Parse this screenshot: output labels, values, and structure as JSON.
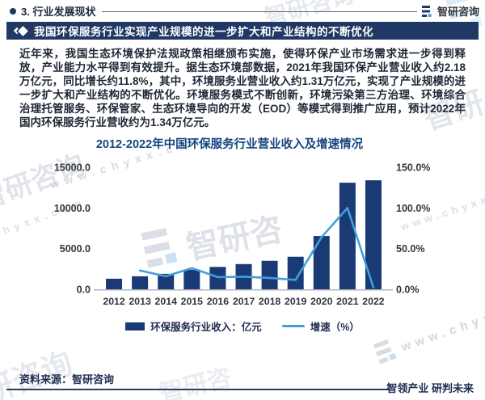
{
  "header": {
    "section_title": "3. 行业发展现状",
    "brand": "智研咨询"
  },
  "banner": {
    "title": "我国环保服务行业实现产业规模的进一步扩大和产业结构的不断优化"
  },
  "intro": {
    "text": "近年来，我国生态环境保护法规政策相继颁布实施，使得环保产业市场需求进一步得到释放，产业能力水平得到有效提升。据生态环境部数据，2021年我国环保产业营业收入约2.18 万亿元，同比增长约11.8%，其中，环境服务业营业收入约1.31万亿元，实现了产业规模的进一步扩大和产业结构的不断优化。环境服务模式不断创新，环境污染第三方治理、环境综合治理托管服务、环保管家、生态环境导向的开发（EOD）等模式得到推广应用，预计2022年国内环保服务行业营收约为1.34万亿元。"
  },
  "chart_data": {
    "type": "bar",
    "title": "2012-2022年中国环保服务行业营业收入及增速情况",
    "categories": [
      "2012",
      "2013",
      "2014",
      "2015",
      "2016",
      "2017",
      "2018",
      "2019",
      "2020",
      "2021",
      "2022"
    ],
    "series": [
      {
        "name": "环保服务行业收入：亿元",
        "type": "bar",
        "axis": "left",
        "color": "#1a3a76",
        "values": [
          1300,
          1600,
          1900,
          2400,
          2750,
          3100,
          3500,
          4000,
          6550,
          13100,
          13400
        ]
      },
      {
        "name": "增速（%）",
        "type": "line",
        "axis": "right",
        "color": "#41a0d8",
        "values": [
          null,
          23.1,
          16.0,
          26.0,
          15.0,
          15.5,
          14.0,
          11.5,
          64.0,
          100.0,
          2.3
        ]
      }
    ],
    "left_axis": {
      "ticks": [
        "0.0",
        "5000.0",
        "10000.0",
        "15000.0"
      ],
      "min": 0,
      "max": 15000
    },
    "right_axis": {
      "ticks": [
        "0.0%",
        "50.0%",
        "100.0%",
        "150.0%"
      ],
      "min": 0,
      "max": 150
    },
    "legend_position": "bottom",
    "grid": false
  },
  "footer": {
    "source": "资料来源：智研咨询",
    "slogan": "智领产业 研判未来"
  },
  "watermark": {
    "brand": "智研咨询",
    "brand_short": "智研咨",
    "brand_left": "智研",
    "partial": "研咨询",
    "url": "www.chyxx.com",
    "url_short": "www.chyxx",
    "domain": "chyxx.com"
  },
  "colors": {
    "banner_bg": "#1f3864",
    "bar": "#1a3a76",
    "line": "#41a0d8",
    "chart_title": "#17457f",
    "axis_text": "#33363c"
  }
}
